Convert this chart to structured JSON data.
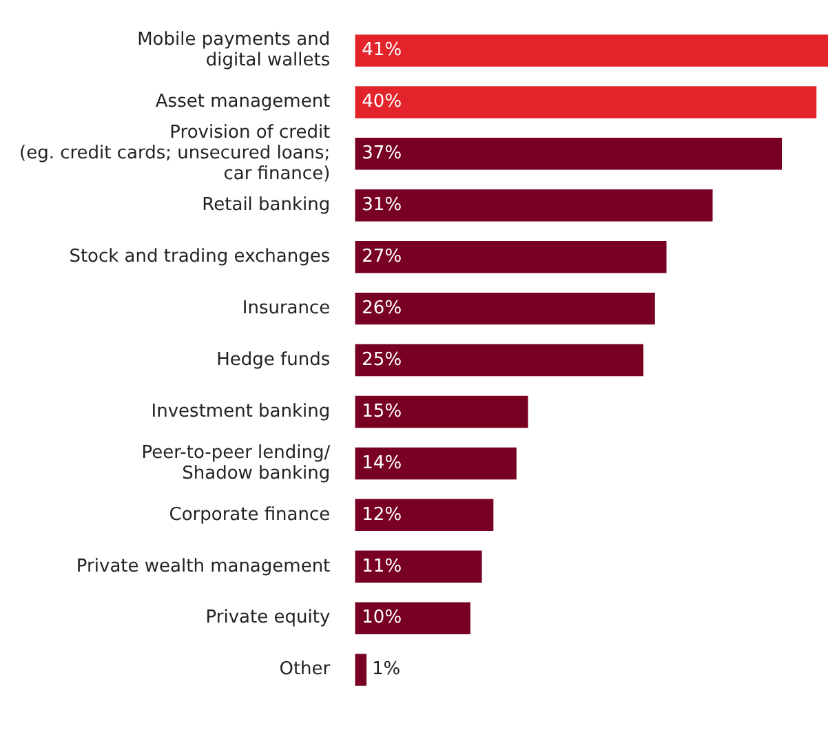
{
  "chart_data": {
    "type": "bar",
    "orientation": "horizontal",
    "categories": [
      "Mobile payments and\ndigital wallets",
      "Asset management",
      "Provision of credit\n(eg. credit cards; unsecured loans;\ncar finance)",
      "Retail banking",
      "Stock and trading exchanges",
      "Insurance",
      "Hedge funds",
      "Investment banking",
      "Peer-to-peer lending/\nShadow banking",
      "Corporate finance",
      "Private wealth management",
      "Private equity",
      "Other"
    ],
    "values": [
      41,
      40,
      37,
      31,
      27,
      26,
      25,
      15,
      14,
      12,
      11,
      10,
      1
    ],
    "colors": [
      "#e3242b",
      "#e3242b",
      "#780022",
      "#780022",
      "#780022",
      "#780022",
      "#780022",
      "#780022",
      "#780022",
      "#780022",
      "#780022",
      "#780022",
      "#780022"
    ],
    "value_labels": [
      "41%",
      "40%",
      "37%",
      "31%",
      "27%",
      "26%",
      "25%",
      "15%",
      "14%",
      "12%",
      "11%",
      "10%",
      "1%"
    ]
  }
}
